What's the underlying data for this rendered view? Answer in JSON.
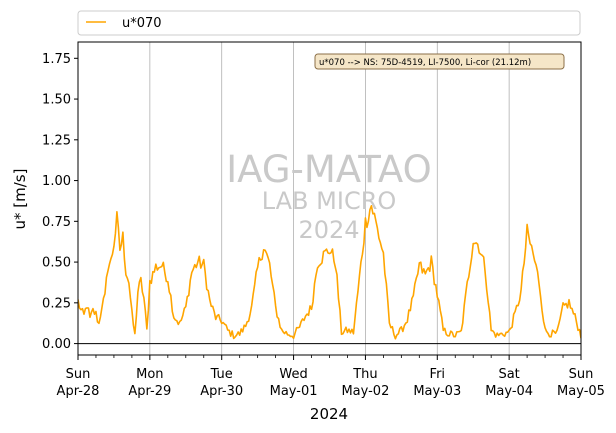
{
  "chart_data": {
    "type": "line",
    "xlabel": "2024",
    "ylabel": "u* [m/s]",
    "ylim": [
      -0.07,
      1.85
    ],
    "yticks": [
      0.0,
      0.25,
      0.5,
      0.75,
      1.0,
      1.25,
      1.5,
      1.75
    ],
    "ytick_labels": [
      "0.00",
      "0.25",
      "0.50",
      "0.75",
      "1.00",
      "1.25",
      "1.50",
      "1.75"
    ],
    "xlim": [
      "2024-04-28 00:00",
      "2024-05-05 00:00"
    ],
    "xticks": [
      {
        "day": "Sun",
        "date": "Apr-28"
      },
      {
        "day": "Mon",
        "date": "Apr-29"
      },
      {
        "day": "Tue",
        "date": "Apr-30"
      },
      {
        "day": "Wed",
        "date": "May-01"
      },
      {
        "day": "Thu",
        "date": "May-02"
      },
      {
        "day": "Fri",
        "date": "May-03"
      },
      {
        "day": "Sat",
        "date": "May-04"
      },
      {
        "day": "Sun",
        "date": "May-05"
      }
    ],
    "grid": "vertical lines at major ticks",
    "legend_position": "top, above the plot",
    "annotation": "u*070 --> NS: 75D-4519, LI-7500, Li-cor (21.12m)",
    "watermark": [
      "IAG-MATAO",
      "LAB MICRO",
      "2024"
    ],
    "series": [
      {
        "name": "u*070",
        "color": "#ffa500",
        "sampling": "30 min",
        "anchors_hours": [
          0,
          1,
          2,
          3,
          4,
          5,
          6,
          7,
          8,
          9,
          10,
          11,
          12,
          13,
          14,
          15,
          16,
          17,
          18,
          19,
          20,
          21,
          22,
          23,
          24,
          26,
          28,
          30,
          32,
          34,
          36,
          38,
          40,
          42,
          44,
          46,
          48,
          50,
          52,
          54,
          56,
          58,
          60,
          62,
          64,
          66,
          68,
          70,
          72,
          74,
          76,
          78,
          80,
          82,
          84,
          86,
          88,
          90,
          92,
          94,
          96,
          98,
          100,
          102,
          104,
          106,
          108,
          110,
          112,
          114,
          116,
          118,
          120,
          122,
          124,
          126,
          128,
          130,
          132,
          134,
          136,
          138,
          140,
          142,
          144,
          146,
          148,
          150,
          152,
          154,
          156,
          158,
          160,
          162,
          164,
          166,
          168
        ],
        "anchor_values": [
          0.26,
          0.2,
          0.17,
          0.24,
          0.15,
          0.2,
          0.18,
          0.12,
          0.24,
          0.28,
          0.48,
          0.5,
          0.62,
          0.76,
          0.58,
          0.65,
          0.45,
          0.38,
          0.18,
          0.05,
          0.32,
          0.38,
          0.28,
          0.08,
          0.38,
          0.47,
          0.48,
          0.4,
          0.17,
          0.12,
          0.22,
          0.44,
          0.5,
          0.48,
          0.26,
          0.16,
          0.14,
          0.08,
          0.05,
          0.06,
          0.11,
          0.22,
          0.46,
          0.6,
          0.48,
          0.22,
          0.08,
          0.06,
          0.05,
          0.1,
          0.17,
          0.22,
          0.5,
          0.54,
          0.58,
          0.5,
          0.07,
          0.08,
          0.07,
          0.4,
          0.74,
          0.85,
          0.7,
          0.55,
          0.12,
          0.05,
          0.08,
          0.15,
          0.28,
          0.48,
          0.42,
          0.5,
          0.3,
          0.08,
          0.06,
          0.05,
          0.07,
          0.36,
          0.64,
          0.6,
          0.46,
          0.08,
          0.05,
          0.06,
          0.07,
          0.18,
          0.32,
          0.68,
          0.55,
          0.38,
          0.08,
          0.06,
          0.06,
          0.22,
          0.25,
          0.16,
          0.05
        ],
        "noise_amplitude": 0.05
      }
    ]
  }
}
